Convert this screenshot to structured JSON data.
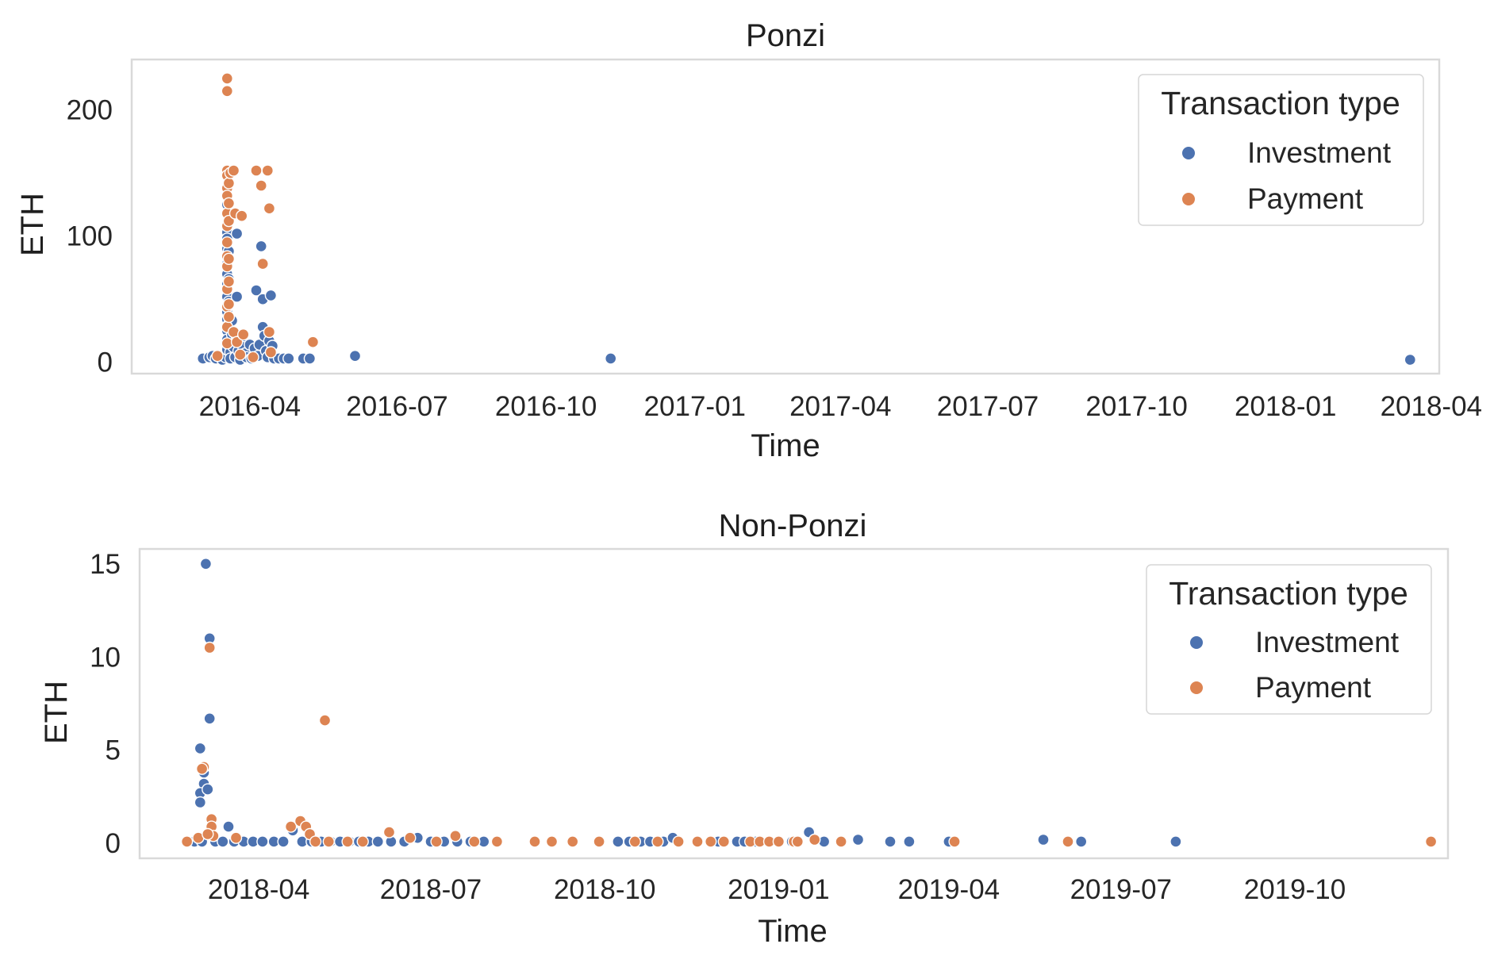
{
  "chart_data": [
    {
      "type": "scatter",
      "title": "Ponzi",
      "xlabel": "Time",
      "ylabel": "ETH",
      "x_type": "date",
      "xlim": [
        "2016-01-19",
        "2018-04-06"
      ],
      "ylim": [
        -9,
        240
      ],
      "xticks": [
        "2016-04",
        "2016-07",
        "2016-10",
        "2017-01",
        "2017-04",
        "2017-07",
        "2017-10",
        "2018-01",
        "2018-04"
      ],
      "yticks": [
        0,
        100,
        200
      ],
      "grid": false,
      "legend": {
        "title": "Transaction type",
        "placement": "top-right"
      },
      "series": [
        {
          "name": "Investment",
          "color": "#4c72b0",
          "points": [
            [
              "2016-03-03",
              3
            ],
            [
              "2016-03-07",
              4
            ],
            [
              "2016-03-09",
              5
            ],
            [
              "2016-03-11",
              3
            ],
            [
              "2016-03-13",
              5
            ],
            [
              "2016-03-15",
              2
            ],
            [
              "2016-03-17",
              4
            ],
            [
              "2016-03-18",
              125
            ],
            [
              "2016-03-18",
              103
            ],
            [
              "2016-03-18",
              98
            ],
            [
              "2016-03-18",
              90
            ],
            [
              "2016-03-18",
              78
            ],
            [
              "2016-03-18",
              70
            ],
            [
              "2016-03-18",
              62
            ],
            [
              "2016-03-18",
              52
            ],
            [
              "2016-03-18",
              40
            ],
            [
              "2016-03-18",
              34
            ],
            [
              "2016-03-18",
              25
            ],
            [
              "2016-03-18",
              18
            ],
            [
              "2016-03-18",
              10
            ],
            [
              "2016-03-19",
              88
            ],
            [
              "2016-03-19",
              66
            ],
            [
              "2016-03-19",
              48
            ],
            [
              "2016-03-19",
              30
            ],
            [
              "2016-03-19",
              14
            ],
            [
              "2016-03-20",
              8
            ],
            [
              "2016-03-20",
              3
            ],
            [
              "2016-03-21",
              33
            ],
            [
              "2016-03-21",
              22
            ],
            [
              "2016-03-22",
              12
            ],
            [
              "2016-03-23",
              4
            ],
            [
              "2016-03-24",
              102
            ],
            [
              "2016-03-24",
              52
            ],
            [
              "2016-03-24",
              20
            ],
            [
              "2016-03-25",
              9
            ],
            [
              "2016-03-26",
              2
            ],
            [
              "2016-03-27",
              16
            ],
            [
              "2016-03-28",
              12
            ],
            [
              "2016-03-29",
              7
            ],
            [
              "2016-03-30",
              4
            ],
            [
              "2016-04-01",
              14
            ],
            [
              "2016-04-02",
              3
            ],
            [
              "2016-04-04",
              11
            ],
            [
              "2016-04-05",
              57
            ],
            [
              "2016-04-06",
              5
            ],
            [
              "2016-04-07",
              14
            ],
            [
              "2016-04-08",
              92
            ],
            [
              "2016-04-09",
              50
            ],
            [
              "2016-04-09",
              28
            ],
            [
              "2016-04-10",
              21
            ],
            [
              "2016-04-11",
              9
            ],
            [
              "2016-04-12",
              4
            ],
            [
              "2016-04-13",
              17
            ],
            [
              "2016-04-14",
              53
            ],
            [
              "2016-04-15",
              13
            ],
            [
              "2016-04-16",
              3
            ],
            [
              "2016-04-19",
              3
            ],
            [
              "2016-04-22",
              3
            ],
            [
              "2016-04-25",
              3
            ],
            [
              "2016-05-04",
              3
            ],
            [
              "2016-05-08",
              3
            ],
            [
              "2016-06-05",
              5
            ],
            [
              "2016-11-10",
              3
            ],
            [
              "2018-03-19",
              2
            ]
          ]
        },
        {
          "name": "Payment",
          "color": "#dd8452",
          "points": [
            [
              "2016-03-18",
              225
            ],
            [
              "2016-03-18",
              215
            ],
            [
              "2016-03-18",
              152
            ],
            [
              "2016-03-18",
              148
            ],
            [
              "2016-03-18",
              138
            ],
            [
              "2016-03-18",
              132
            ],
            [
              "2016-03-18",
              118
            ],
            [
              "2016-03-18",
              108
            ],
            [
              "2016-03-18",
              95
            ],
            [
              "2016-03-18",
              84
            ],
            [
              "2016-03-18",
              76
            ],
            [
              "2016-03-18",
              58
            ],
            [
              "2016-03-18",
              44
            ],
            [
              "2016-03-18",
              28
            ],
            [
              "2016-03-18",
              15
            ],
            [
              "2016-03-19",
              142
            ],
            [
              "2016-03-19",
              126
            ],
            [
              "2016-03-19",
              112
            ],
            [
              "2016-03-19",
              82
            ],
            [
              "2016-03-19",
              64
            ],
            [
              "2016-03-19",
              46
            ],
            [
              "2016-03-19",
              36
            ],
            [
              "2016-03-20",
              150
            ],
            [
              "2016-03-22",
              152
            ],
            [
              "2016-03-22",
              24
            ],
            [
              "2016-03-23",
              118
            ],
            [
              "2016-03-24",
              16
            ],
            [
              "2016-03-27",
              116
            ],
            [
              "2016-03-28",
              22
            ],
            [
              "2016-04-05",
              152
            ],
            [
              "2016-04-08",
              140
            ],
            [
              "2016-04-09",
              78
            ],
            [
              "2016-04-12",
              152
            ],
            [
              "2016-04-13",
              122
            ],
            [
              "2016-04-13",
              24
            ],
            [
              "2016-04-14",
              8
            ],
            [
              "2016-05-10",
              16
            ],
            [
              "2016-03-12",
              5
            ],
            [
              "2016-03-26",
              6
            ],
            [
              "2016-04-03",
              4
            ]
          ]
        }
      ]
    },
    {
      "type": "scatter",
      "title": "Non-Ponzi",
      "xlabel": "Time",
      "ylabel": "ETH",
      "x_type": "date",
      "xlim": [
        "2018-01-28",
        "2019-12-21"
      ],
      "ylim": [
        -0.8,
        15.8
      ],
      "xticks": [
        "2018-04",
        "2018-07",
        "2018-10",
        "2019-01",
        "2019-04",
        "2019-07",
        "2019-10"
      ],
      "yticks": [
        0,
        5,
        10,
        15
      ],
      "grid": false,
      "legend": {
        "title": "Transaction type",
        "placement": "top-right"
      },
      "series": [
        {
          "name": "Investment",
          "color": "#4c72b0",
          "points": [
            [
              "2018-03-04",
              15.0
            ],
            [
              "2018-03-06",
              11.0
            ],
            [
              "2018-03-06",
              6.7
            ],
            [
              "2018-03-01",
              5.1
            ],
            [
              "2018-03-03",
              3.8
            ],
            [
              "2018-03-03",
              3.2
            ],
            [
              "2018-03-01",
              2.7
            ],
            [
              "2018-03-01",
              2.2
            ],
            [
              "2018-03-05",
              2.9
            ],
            [
              "2018-02-26",
              0.1
            ],
            [
              "2018-03-02",
              0.1
            ],
            [
              "2018-03-09",
              0.1
            ],
            [
              "2018-03-13",
              0.1
            ],
            [
              "2018-03-16",
              0.9
            ],
            [
              "2018-03-19",
              0.1
            ],
            [
              "2018-03-24",
              0.1
            ],
            [
              "2018-03-29",
              0.1
            ],
            [
              "2018-04-03",
              0.1
            ],
            [
              "2018-04-09",
              0.1
            ],
            [
              "2018-04-14",
              0.1
            ],
            [
              "2018-04-19",
              0.7
            ],
            [
              "2018-04-24",
              0.1
            ],
            [
              "2018-04-29",
              0.1
            ],
            [
              "2018-05-04",
              0.1
            ],
            [
              "2018-05-09",
              0.1
            ],
            [
              "2018-05-14",
              0.1
            ],
            [
              "2018-05-19",
              0.1
            ],
            [
              "2018-05-24",
              0.1
            ],
            [
              "2018-05-29",
              0.1
            ],
            [
              "2018-06-03",
              0.1
            ],
            [
              "2018-06-10",
              0.1
            ],
            [
              "2018-06-17",
              0.1
            ],
            [
              "2018-06-24",
              0.3
            ],
            [
              "2018-07-01",
              0.1
            ],
            [
              "2018-07-08",
              0.1
            ],
            [
              "2018-07-15",
              0.1
            ],
            [
              "2018-07-22",
              0.1
            ],
            [
              "2018-07-29",
              0.1
            ],
            [
              "2018-08-05",
              0.1
            ],
            [
              "2018-10-08",
              0.1
            ],
            [
              "2018-10-14",
              0.1
            ],
            [
              "2018-10-20",
              0.1
            ],
            [
              "2018-10-25",
              0.1
            ],
            [
              "2018-11-01",
              0.1
            ],
            [
              "2018-11-06",
              0.3
            ],
            [
              "2018-11-30",
              0.1
            ],
            [
              "2018-12-10",
              0.1
            ],
            [
              "2018-12-14",
              0.1
            ],
            [
              "2018-12-20",
              0.1
            ],
            [
              "2019-01-08",
              0.1
            ],
            [
              "2019-01-17",
              0.6
            ],
            [
              "2019-01-25",
              0.1
            ],
            [
              "2019-02-12",
              0.2
            ],
            [
              "2019-03-01",
              0.1
            ],
            [
              "2019-03-11",
              0.1
            ],
            [
              "2019-04-01",
              0.1
            ],
            [
              "2019-05-21",
              0.2
            ],
            [
              "2019-06-10",
              0.1
            ],
            [
              "2019-07-30",
              0.1
            ]
          ]
        },
        {
          "name": "Payment",
          "color": "#dd8452",
          "points": [
            [
              "2018-03-06",
              10.5
            ],
            [
              "2018-03-03",
              4.1
            ],
            [
              "2018-03-02",
              4.0
            ],
            [
              "2018-03-07",
              1.3
            ],
            [
              "2018-03-07",
              0.9
            ],
            [
              "2018-03-08",
              0.4
            ],
            [
              "2018-02-22",
              0.1
            ],
            [
              "2018-02-28",
              0.3
            ],
            [
              "2018-03-05",
              0.5
            ],
            [
              "2018-03-20",
              0.3
            ],
            [
              "2018-04-18",
              0.9
            ],
            [
              "2018-04-23",
              1.2
            ],
            [
              "2018-04-26",
              0.9
            ],
            [
              "2018-04-28",
              0.5
            ],
            [
              "2018-05-01",
              0.1
            ],
            [
              "2018-05-06",
              6.6
            ],
            [
              "2018-05-08",
              0.1
            ],
            [
              "2018-05-18",
              0.1
            ],
            [
              "2018-05-26",
              0.1
            ],
            [
              "2018-06-09",
              0.6
            ],
            [
              "2018-06-20",
              0.3
            ],
            [
              "2018-07-04",
              0.1
            ],
            [
              "2018-07-14",
              0.4
            ],
            [
              "2018-07-24",
              0.1
            ],
            [
              "2018-08-05",
              0.1
            ],
            [
              "2018-08-25",
              0.1
            ],
            [
              "2018-09-03",
              0.1
            ],
            [
              "2018-09-14",
              0.1
            ],
            [
              "2018-09-28",
              0.1
            ],
            [
              "2018-10-17",
              0.1
            ],
            [
              "2018-10-29",
              0.1
            ],
            [
              "2018-11-09",
              0.1
            ],
            [
              "2018-11-19",
              0.1
            ],
            [
              "2018-11-26",
              0.1
            ],
            [
              "2018-12-03",
              0.1
            ],
            [
              "2018-12-17",
              0.1
            ],
            [
              "2018-12-22",
              0.1
            ],
            [
              "2018-12-27",
              0.1
            ],
            [
              "2019-01-01",
              0.1
            ],
            [
              "2019-01-09",
              0.1
            ],
            [
              "2019-01-11",
              0.1
            ],
            [
              "2019-01-20",
              0.2
            ],
            [
              "2019-02-03",
              0.1
            ],
            [
              "2019-04-04",
              0.1
            ],
            [
              "2019-06-03",
              0.1
            ],
            [
              "2019-12-12",
              0.1
            ]
          ]
        }
      ]
    }
  ]
}
